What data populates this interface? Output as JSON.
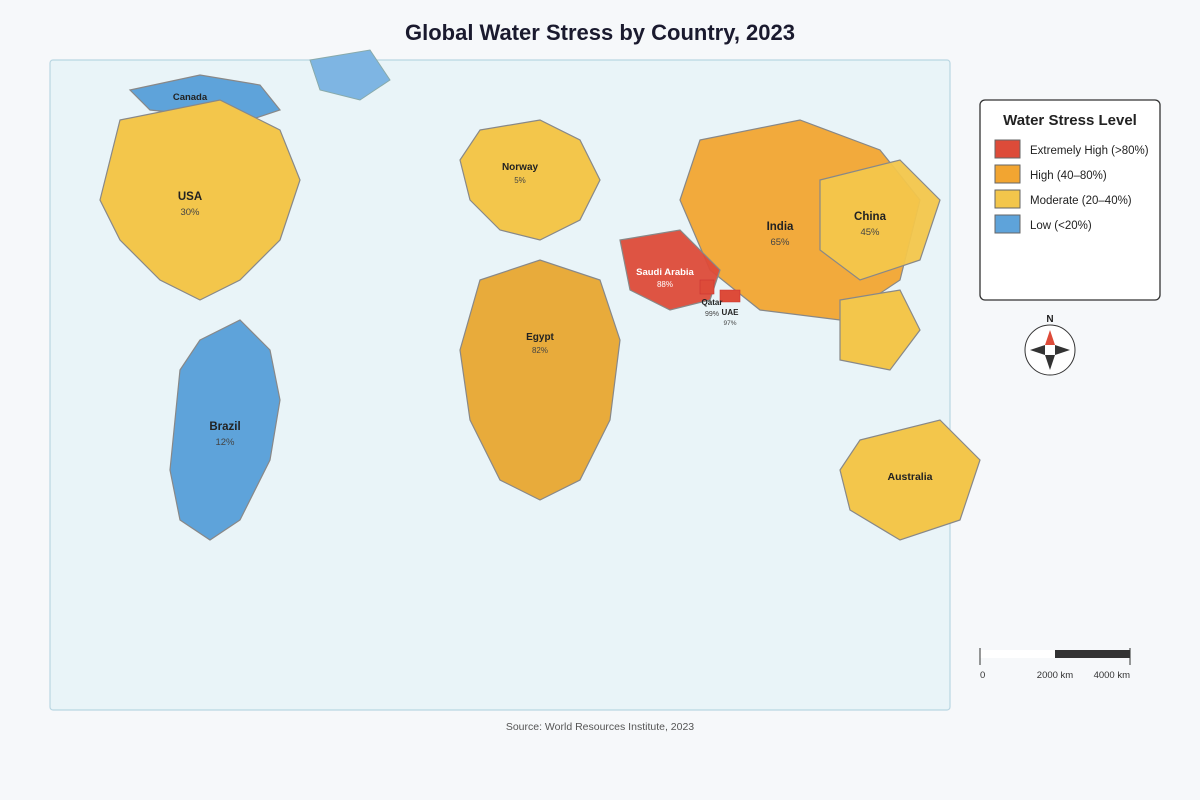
{
  "title": "Global Water Stress by Country, 2023",
  "source": "Source: World Resources Institute, 2023",
  "legend": {
    "title": "Water Stress Level",
    "items": [
      {
        "label": "Extremely High (>80%)",
        "color": "#dd4b39"
      },
      {
        "label": "High (40–80%)",
        "color": "#f2a531"
      },
      {
        "label": "Moderate (20–40%)",
        "color": "#f3c64b"
      },
      {
        "label": "Low (<20%)",
        "color": "#5ea3da"
      }
    ]
  },
  "compass": {
    "north": "N"
  },
  "scale_bar": {
    "labels": [
      "0",
      "2000 km",
      "4000 km"
    ]
  },
  "colors": {
    "ocean": "#e9f4f8",
    "extremely_high": "#dd4b39",
    "high": "#f2a531",
    "egypt": "#e8ab3b",
    "moderate": "#f3c64b",
    "low": "#5ea3da",
    "low_light": "#7eb5e3"
  },
  "countries": [
    {
      "name": "Canada",
      "value": ""
    },
    {
      "name": "USA",
      "value": "30%"
    },
    {
      "name": "Brazil",
      "value": "12%"
    },
    {
      "name": "Norway",
      "value": "5%"
    },
    {
      "name": "Egypt",
      "value": "82%"
    },
    {
      "name": "Saudi Arabia",
      "value": "88%"
    },
    {
      "name": "Qatar",
      "value": "99%"
    },
    {
      "name": "UAE",
      "value": "97%"
    },
    {
      "name": "India",
      "value": "65%"
    },
    {
      "name": "China",
      "value": "45%"
    },
    {
      "name": "Australia",
      "value": ""
    }
  ]
}
